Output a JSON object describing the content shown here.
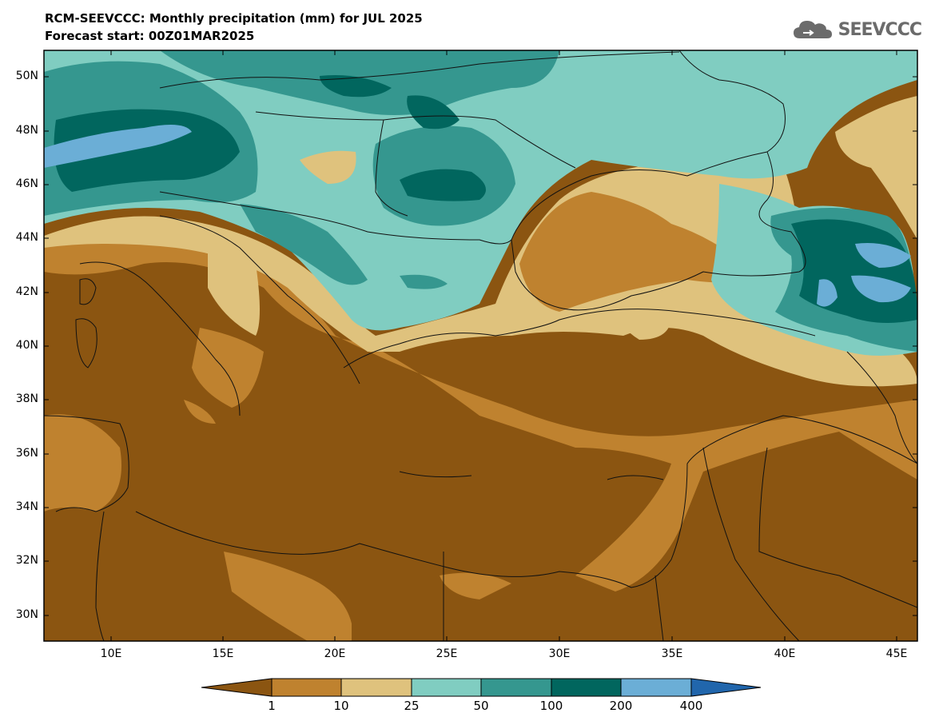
{
  "title_line1": "RCM-SEEVCCC: Monthly precipitation (mm) for JUL 2025",
  "title_line2": "Forecast start: 00Z01MAR2025",
  "logo": {
    "text": "SEEVCCC",
    "icon": "cloud-icon"
  },
  "lat_labels": [
    "50N",
    "48N",
    "46N",
    "44N",
    "42N",
    "40N",
    "38N",
    "36N",
    "34N",
    "32N",
    "30N"
  ],
  "lon_labels": [
    "10E",
    "15E",
    "20E",
    "25E",
    "30E",
    "35E",
    "40E",
    "45E"
  ],
  "colorbar": {
    "ticks": [
      "1",
      "10",
      "25",
      "50",
      "100",
      "200",
      "400"
    ],
    "colors": [
      "#8b5511",
      "#bf822f",
      "#dfc27d",
      "#80cdc1",
      "#35978f",
      "#01665e",
      "#6baed6",
      "#2166ac"
    ]
  }
}
